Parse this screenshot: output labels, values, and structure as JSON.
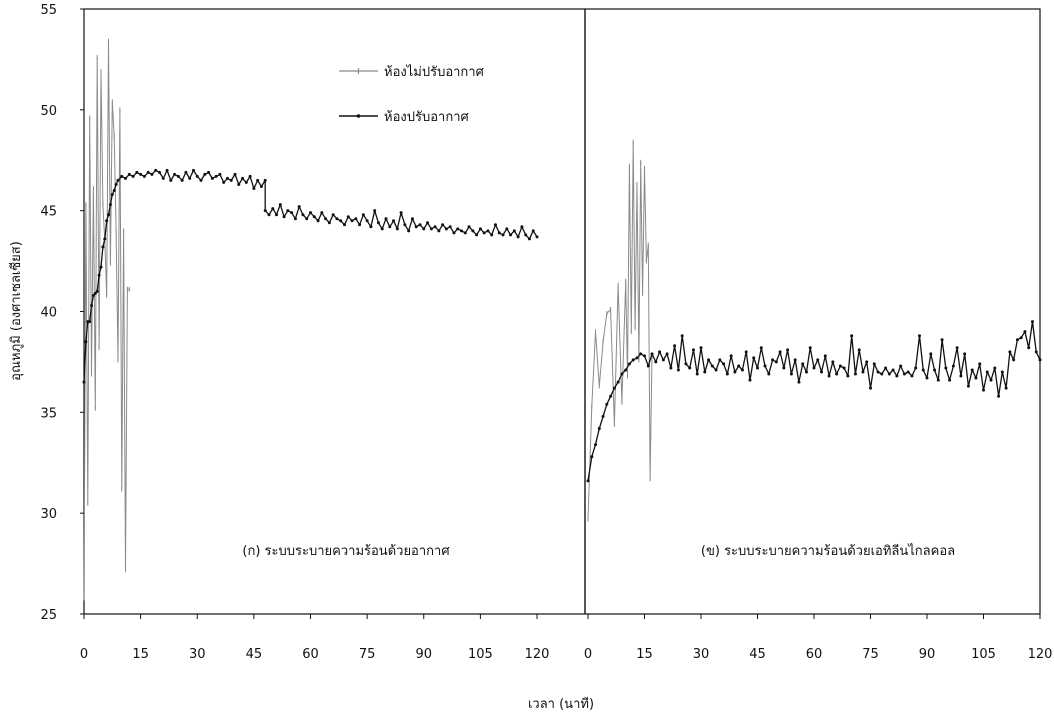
{
  "chart_data": {
    "type": "line",
    "ylabel": "อุณหภูมิ (องศาเซลเซียส)",
    "xlabel": "เวลา (นาที)",
    "ylim": [
      25,
      55
    ],
    "yticks": [
      "25",
      "30",
      "35",
      "40",
      "45",
      "50",
      "55"
    ],
    "legend": {
      "placement": "top-center-left",
      "entries": [
        "ห้องไม่ปรับอากาศ",
        "ห้องปรับอากาศ"
      ]
    },
    "colors": {
      "unconditioned": "#8a8a8a",
      "conditioned": "#111111"
    },
    "panels": [
      {
        "caption": "(ก) ระบบระบายความร้อนด้วยอากาศ",
        "xlim": [
          0,
          120
        ],
        "xticks": [
          "0",
          "15",
          "30",
          "45",
          "60",
          "75",
          "90",
          "105",
          "120"
        ],
        "series": [
          {
            "name": "ห้องไม่ปรับอากาศ",
            "x": [
              0,
              0.5,
              1,
              1.5,
              2,
              2.5,
              3,
              3.5,
              4,
              4.5,
              5,
              5.5,
              6,
              6.5,
              7,
              7.5,
              8,
              8.5,
              9,
              9.5,
              10,
              10.5,
              11,
              11.5,
              12
            ],
            "y": [
              25.8,
              45.3,
              30.5,
              49.6,
              36.9,
              46.1,
              35.2,
              52.6,
              38.2,
              51.9,
              45.3,
              43.5,
              40.8,
              53.4,
              42.4,
              50.4,
              48.7,
              44.0,
              37.6,
              50.0,
              31.2,
              44.0,
              27.2,
              41.1,
              41.1
            ]
          },
          {
            "name": "ห้องปรับอากาศ",
            "x": [
              0,
              0.5,
              1,
              1.5,
              2,
              2.5,
              3,
              3.5,
              4,
              4.5,
              5,
              5.5,
              6,
              6.5,
              7,
              7.5,
              8,
              8.5,
              9,
              10,
              11,
              12,
              13,
              14,
              15,
              16,
              17,
              18,
              19,
              20,
              21,
              22,
              23,
              24,
              25,
              26,
              27,
              28,
              29,
              30,
              31,
              32,
              33,
              34,
              35,
              36,
              37,
              38,
              39,
              40,
              41,
              42,
              43,
              44,
              45,
              46,
              47,
              48,
              48.01,
              49,
              50,
              51,
              52,
              53,
              54,
              55,
              56,
              57,
              58,
              59,
              60,
              61,
              62,
              63,
              64,
              65,
              66,
              67,
              68,
              69,
              70,
              71,
              72,
              73,
              74,
              75,
              76,
              77,
              78,
              79,
              80,
              81,
              82,
              83,
              84,
              85,
              86,
              87,
              88,
              89,
              90,
              91,
              92,
              93,
              94,
              95,
              96,
              97,
              98,
              99,
              100,
              101,
              102,
              103,
              104,
              105,
              106,
              107,
              108,
              109,
              110,
              111,
              112,
              113,
              114,
              115,
              116,
              117,
              118,
              119,
              120
            ],
            "y": [
              36.5,
              38.5,
              39.5,
              39.5,
              40.3,
              40.8,
              40.9,
              41.0,
              41.8,
              42.2,
              43.2,
              43.6,
              44.5,
              44.8,
              45.3,
              45.8,
              46.0,
              46.3,
              46.5,
              46.7,
              46.6,
              46.8,
              46.7,
              46.9,
              46.8,
              46.7,
              46.9,
              46.8,
              47.0,
              46.9,
              46.6,
              47.0,
              46.5,
              46.8,
              46.7,
              46.5,
              46.9,
              46.6,
              47.0,
              46.7,
              46.5,
              46.8,
              46.9,
              46.6,
              46.7,
              46.8,
              46.4,
              46.6,
              46.5,
              46.8,
              46.3,
              46.6,
              46.4,
              46.7,
              46.1,
              46.5,
              46.2,
              46.5,
              45.0,
              44.8,
              45.1,
              44.8,
              45.3,
              44.7,
              45.0,
              44.9,
              44.6,
              45.2,
              44.8,
              44.6,
              44.9,
              44.7,
              44.5,
              44.9,
              44.6,
              44.4,
              44.8,
              44.6,
              44.5,
              44.3,
              44.7,
              44.5,
              44.6,
              44.3,
              44.8,
              44.5,
              44.2,
              45.0,
              44.4,
              44.1,
              44.6,
              44.2,
              44.5,
              44.1,
              44.9,
              44.3,
              44.0,
              44.6,
              44.2,
              44.3,
              44.1,
              44.4,
              44.1,
              44.2,
              44.0,
              44.3,
              44.1,
              44.2,
              43.9,
              44.1,
              44.0,
              43.9,
              44.2,
              44.0,
              43.8,
              44.1,
              43.9,
              44.0,
              43.8,
              44.3,
              43.9,
              43.8,
              44.1,
              43.8,
              44.0,
              43.7,
              44.2,
              43.8,
              43.6,
              44.0,
              43.7
            ]
          }
        ]
      },
      {
        "caption": "(ข) ระบบระบายความร้อนด้วยเอทิลีนไกลคอล",
        "xlim": [
          0,
          120
        ],
        "xticks": [
          "0",
          "15",
          "30",
          "45",
          "60",
          "75",
          "90",
          "105",
          "120"
        ],
        "series": [
          {
            "name": "ห้องไม่ปรับอากาศ",
            "x": [
              0,
              1,
              2,
              3,
              4,
              5,
              6,
              7,
              8,
              9,
              10,
              10.5,
              11,
              11.5,
              12,
              12.5,
              13,
              13.5,
              14,
              14.5,
              15,
              15.5,
              16,
              16.5,
              17
            ],
            "y": [
              29.7,
              35.3,
              39.0,
              36.3,
              38.5,
              39.9,
              40.1,
              34.4,
              41.3,
              35.5,
              41.5,
              36.8,
              47.2,
              39.0,
              48.4,
              39.2,
              46.3,
              37.6,
              47.4,
              40.9,
              47.1,
              42.5,
              43.3,
              31.7,
              37.8
            ]
          },
          {
            "name": "ห้องปรับอากาศ",
            "x": [
              0,
              1,
              2,
              3,
              4,
              5,
              6,
              7,
              8,
              9,
              10,
              11,
              12,
              13,
              14,
              15,
              16,
              17,
              18,
              19,
              20,
              21,
              22,
              23,
              24,
              25,
              26,
              27,
              28,
              29,
              30,
              31,
              32,
              33,
              34,
              35,
              36,
              37,
              38,
              39,
              40,
              41,
              42,
              43,
              44,
              45,
              46,
              47,
              48,
              49,
              50,
              51,
              52,
              53,
              54,
              55,
              56,
              57,
              58,
              59,
              60,
              61,
              62,
              63,
              64,
              65,
              66,
              67,
              68,
              69,
              70,
              71,
              72,
              73,
              74,
              75,
              76,
              77,
              78,
              79,
              80,
              81,
              82,
              83,
              84,
              85,
              86,
              87,
              88,
              89,
              90,
              91,
              92,
              93,
              94,
              95,
              96,
              97,
              98,
              99,
              100,
              101,
              102,
              103,
              104,
              105,
              106,
              107,
              108,
              109,
              110,
              111,
              112,
              113,
              114,
              115,
              116,
              117,
              118,
              119,
              120
            ],
            "y": [
              31.6,
              32.8,
              33.4,
              34.2,
              34.8,
              35.4,
              35.8,
              36.2,
              36.5,
              36.9,
              37.1,
              37.4,
              37.6,
              37.7,
              37.9,
              37.8,
              37.3,
              37.9,
              37.5,
              38.0,
              37.6,
              37.9,
              37.2,
              38.3,
              37.1,
              38.8,
              37.4,
              37.2,
              38.1,
              36.9,
              38.2,
              37.0,
              37.6,
              37.3,
              37.1,
              37.6,
              37.4,
              36.9,
              37.8,
              37.0,
              37.3,
              37.1,
              38.0,
              36.6,
              37.7,
              37.2,
              38.2,
              37.3,
              36.9,
              37.6,
              37.5,
              38.0,
              37.2,
              38.1,
              36.9,
              37.6,
              36.5,
              37.4,
              37.0,
              38.2,
              37.2,
              37.6,
              37.0,
              37.8,
              36.8,
              37.5,
              36.9,
              37.3,
              37.2,
              36.8,
              38.8,
              36.9,
              38.1,
              37.0,
              37.5,
              36.2,
              37.4,
              37.0,
              36.9,
              37.2,
              36.9,
              37.1,
              36.8,
              37.3,
              36.9,
              37.0,
              36.8,
              37.2,
              38.8,
              37.1,
              36.7,
              37.9,
              37.1,
              36.6,
              38.6,
              37.2,
              36.6,
              37.3,
              38.2,
              36.8,
              37.9,
              36.3,
              37.1,
              36.7,
              37.4,
              36.1,
              37.0,
              36.6,
              37.2,
              35.8,
              37.0,
              36.2,
              38.0,
              37.6,
              38.6,
              38.7,
              39.0,
              38.2,
              39.5,
              38.0,
              37.6
            ]
          }
        ]
      }
    ]
  }
}
